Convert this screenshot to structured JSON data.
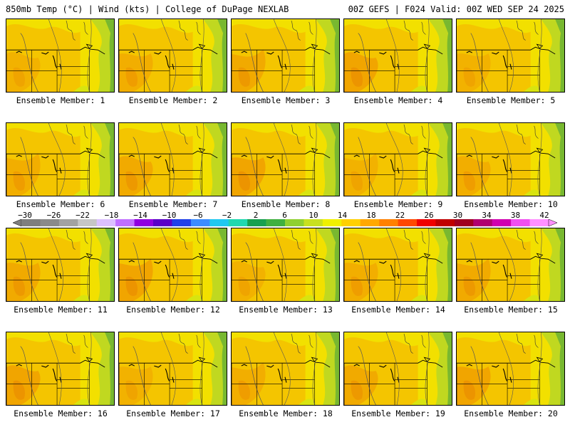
{
  "header": {
    "left": "850mb Temp (°C) | Wind (kts) | College of DuPage NEXLAB",
    "right": "00Z GEFS | F024 Valid: 00Z WED SEP 24 2025"
  },
  "panels": [
    {
      "label": "Ensemble Member: 1"
    },
    {
      "label": "Ensemble Member: 2"
    },
    {
      "label": "Ensemble Member: 3"
    },
    {
      "label": "Ensemble Member: 4"
    },
    {
      "label": "Ensemble Member: 5"
    },
    {
      "label": "Ensemble Member: 6"
    },
    {
      "label": "Ensemble Member: 7"
    },
    {
      "label": "Ensemble Member: 8"
    },
    {
      "label": "Ensemble Member: 9"
    },
    {
      "label": "Ensemble Member: 10"
    },
    {
      "label": "Ensemble Member: 11"
    },
    {
      "label": "Ensemble Member: 12"
    },
    {
      "label": "Ensemble Member: 13"
    },
    {
      "label": "Ensemble Member: 14"
    },
    {
      "label": "Ensemble Member: 15"
    },
    {
      "label": "Ensemble Member: 16"
    },
    {
      "label": "Ensemble Member: 17"
    },
    {
      "label": "Ensemble Member: 18"
    },
    {
      "label": "Ensemble Member: 19"
    },
    {
      "label": "Ensemble Member: 20"
    }
  ],
  "colorbar": {
    "labels": [
      "−30",
      "−26",
      "−22",
      "−18",
      "−14",
      "−10",
      "−6",
      "−2",
      "2",
      "6",
      "10",
      "14",
      "18",
      "22",
      "26",
      "30",
      "34",
      "38",
      "42"
    ],
    "colors": [
      "#7e7e7e",
      "#8a8a8a",
      "#a2a2a2",
      "#c6c6c6",
      "#dcc0ff",
      "#c070ff",
      "#9000e0",
      "#5a00c8",
      "#2040e8",
      "#3c8cff",
      "#20c8f0",
      "#20d8b0",
      "#18a050",
      "#40b040",
      "#90d030",
      "#c8e020",
      "#f0f000",
      "#ffd000",
      "#ffa800",
      "#ff8000",
      "#ff4800",
      "#f00000",
      "#c00000",
      "#a00020",
      "#b00070",
      "#d000b0",
      "#f050f0",
      "#ff90ff"
    ]
  }
}
